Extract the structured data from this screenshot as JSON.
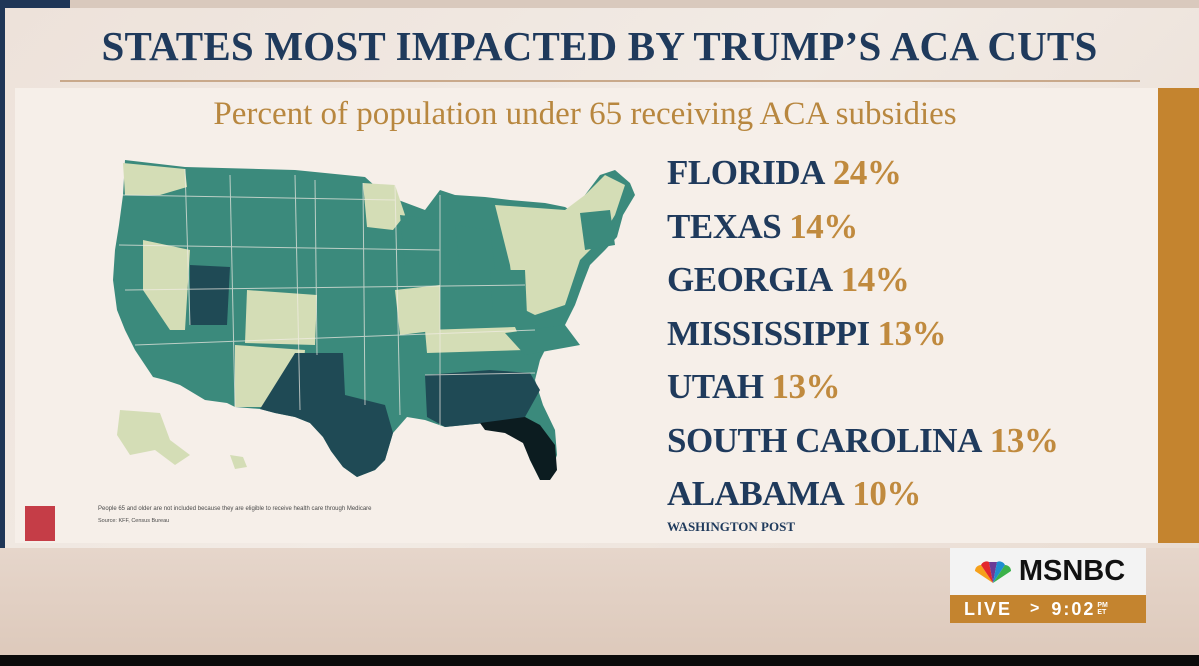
{
  "title": "STATES MOST IMPACTED BY TRUMP’S ACA CUTS",
  "subtitle": "Percent of population under 65 receiving ACA subsidies",
  "states": [
    {
      "name": "FLORIDA",
      "pct": "24%"
    },
    {
      "name": "TEXAS",
      "pct": "14%"
    },
    {
      "name": "GEORGIA",
      "pct": "14%"
    },
    {
      "name": "MISSISSIPPI",
      "pct": "13%"
    },
    {
      "name": "UTAH",
      "pct": "13%"
    },
    {
      "name": "SOUTH CAROLINA",
      "pct": "13%"
    },
    {
      "name": "ALABAMA",
      "pct": "10%"
    }
  ],
  "credit": "WASHINGTON POST",
  "footnote": "People 65 and older are not included because they are eligible to receive health care through Medicare",
  "source": "Source: KFF, Census Bureau",
  "network": {
    "logo_text": "MSNBC",
    "live_label": "LIVE",
    "chevron": ">",
    "time": "9:02",
    "ampm": "PM",
    "tz": "ET"
  },
  "colors": {
    "navy": "#1f3a5c",
    "gold": "#c08a3e",
    "map_light": "#d4ddb6",
    "map_mid": "#3b8a7c",
    "map_dark": "#1f4a55",
    "map_darkest": "#0c1c20"
  }
}
